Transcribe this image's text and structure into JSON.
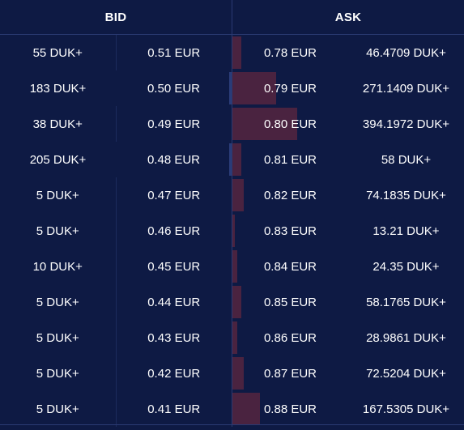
{
  "header": {
    "bid_label": "BID",
    "ask_label": "ASK"
  },
  "colors": {
    "background": "#0e1a44",
    "ask_depth": "#4a2340",
    "bid_depth": "#2a3c78",
    "divider": "#2a3a72"
  },
  "rows": [
    {
      "bid_qty": "55 DUK+",
      "bid_price": "0.51 EUR",
      "ask_price": "0.78 EUR",
      "ask_qty": "46.4709 DUK+",
      "ask_depth_pct": 4,
      "bid_depth_pct": 0
    },
    {
      "bid_qty": "183 DUK+",
      "bid_price": "0.50 EUR",
      "ask_price": "0.79 EUR",
      "ask_qty": "271.1409 DUK+",
      "ask_depth_pct": 19,
      "bid_depth_pct": 1
    },
    {
      "bid_qty": "38 DUK+",
      "bid_price": "0.49 EUR",
      "ask_price": "0.80 EUR",
      "ask_qty": "394.1972 DUK+",
      "ask_depth_pct": 28,
      "bid_depth_pct": 0
    },
    {
      "bid_qty": "205 DUK+",
      "bid_price": "0.48 EUR",
      "ask_price": "0.81 EUR",
      "ask_qty": "58 DUK+",
      "ask_depth_pct": 4,
      "bid_depth_pct": 1
    },
    {
      "bid_qty": "5 DUK+",
      "bid_price": "0.47 EUR",
      "ask_price": "0.82 EUR",
      "ask_qty": "74.1835 DUK+",
      "ask_depth_pct": 5,
      "bid_depth_pct": 0
    },
    {
      "bid_qty": "5 DUK+",
      "bid_price": "0.46 EUR",
      "ask_price": "0.83 EUR",
      "ask_qty": "13.21 DUK+",
      "ask_depth_pct": 1,
      "bid_depth_pct": 0
    },
    {
      "bid_qty": "10 DUK+",
      "bid_price": "0.45 EUR",
      "ask_price": "0.84 EUR",
      "ask_qty": "24.35 DUK+",
      "ask_depth_pct": 2,
      "bid_depth_pct": 0
    },
    {
      "bid_qty": "5 DUK+",
      "bid_price": "0.44 EUR",
      "ask_price": "0.85 EUR",
      "ask_qty": "58.1765 DUK+",
      "ask_depth_pct": 4,
      "bid_depth_pct": 0
    },
    {
      "bid_qty": "5 DUK+",
      "bid_price": "0.43 EUR",
      "ask_price": "0.86 EUR",
      "ask_qty": "28.9861 DUK+",
      "ask_depth_pct": 2,
      "bid_depth_pct": 0
    },
    {
      "bid_qty": "5 DUK+",
      "bid_price": "0.42 EUR",
      "ask_price": "0.87 EUR",
      "ask_qty": "72.5204 DUK+",
      "ask_depth_pct": 5,
      "bid_depth_pct": 0
    },
    {
      "bid_qty": "5 DUK+",
      "bid_price": "0.41 EUR",
      "ask_price": "0.88 EUR",
      "ask_qty": "167.5305 DUK+",
      "ask_depth_pct": 12,
      "bid_depth_pct": 0
    }
  ]
}
